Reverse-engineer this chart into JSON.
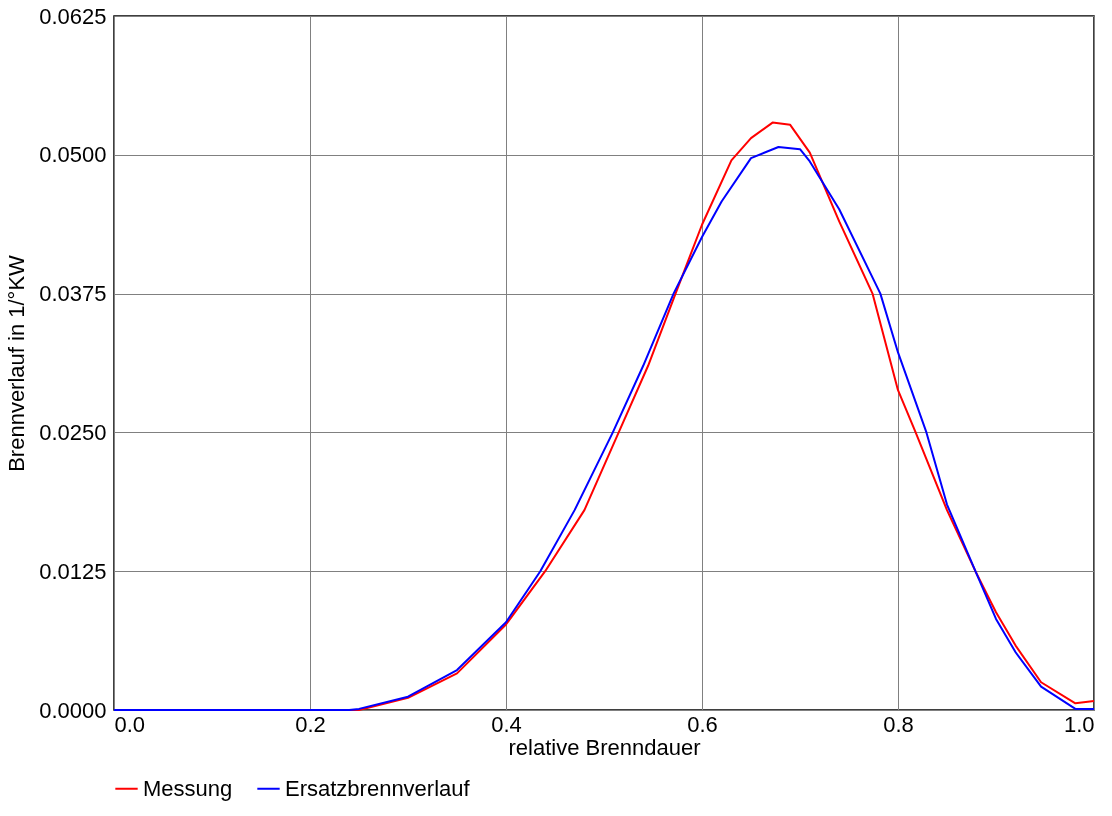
{
  "chart_data": {
    "type": "line",
    "xlabel": "relative Brenndauer",
    "ylabel": "Brennverlauf in 1/°KW",
    "xlim": [
      0.0,
      1.0
    ],
    "ylim": [
      0.0,
      0.0625
    ],
    "xticks": [
      {
        "value": 0,
        "label": "0.0"
      },
      {
        "value": 0.2,
        "label": "0.2"
      },
      {
        "value": 0.4,
        "label": "0.4"
      },
      {
        "value": 0.6,
        "label": "0.6"
      },
      {
        "value": 0.8,
        "label": "0.8"
      },
      {
        "value": 1,
        "label": "1.0"
      }
    ],
    "yticks": [
      {
        "value": 0,
        "label": "0.0000"
      },
      {
        "value": 0.0125,
        "label": "0.0125"
      },
      {
        "value": 0.025,
        "label": "0.0250"
      },
      {
        "value": 0.0375,
        "label": "0.0375"
      },
      {
        "value": 0.05,
        "label": "0.0500"
      },
      {
        "value": 0.0625,
        "label": "0.0625"
      }
    ],
    "grid": true,
    "legend": "bottom",
    "marker": "none",
    "line_style": "solid",
    "series": [
      {
        "name": "Messung",
        "color": "#ff0000",
        "x": [
          0,
          0.24,
          0.25,
          0.3,
          0.35,
          0.4,
          0.44,
          0.48,
          0.515,
          0.545,
          0.573,
          0.6,
          0.63,
          0.65,
          0.672,
          0.69,
          0.71,
          0.74,
          0.774,
          0.8,
          0.818,
          0.85,
          0.879,
          0.9,
          0.92,
          0.946,
          0.981,
          1.0
        ],
        "values": [
          0,
          0,
          0,
          0.0011,
          0.0033,
          0.0077,
          0.0125,
          0.018,
          0.025,
          0.031,
          0.0375,
          0.0437,
          0.0495,
          0.0515,
          0.0529,
          0.0527,
          0.0502,
          0.044,
          0.0375,
          0.0288,
          0.025,
          0.018,
          0.0125,
          0.0088,
          0.0058,
          0.0025,
          0.0006,
          0.0008
        ]
      },
      {
        "name": "Ersatzbrennverlauf",
        "color": "#0000ff",
        "x": [
          0,
          0.24,
          0.25,
          0.3,
          0.35,
          0.4,
          0.435,
          0.47,
          0.509,
          0.54,
          0.571,
          0.6,
          0.62,
          0.65,
          0.678,
          0.7,
          0.71,
          0.74,
          0.782,
          0.8,
          0.829,
          0.85,
          0.879,
          0.9,
          0.92,
          0.946,
          0.981,
          1.0
        ],
        "values": [
          0,
          0,
          0.0001,
          0.0012,
          0.0036,
          0.0079,
          0.0125,
          0.018,
          0.025,
          0.031,
          0.0375,
          0.0426,
          0.0458,
          0.0497,
          0.0507,
          0.0505,
          0.0494,
          0.0451,
          0.0375,
          0.0322,
          0.025,
          0.0185,
          0.0125,
          0.0082,
          0.0052,
          0.0021,
          0.0001,
          0.0001
        ]
      }
    ]
  }
}
